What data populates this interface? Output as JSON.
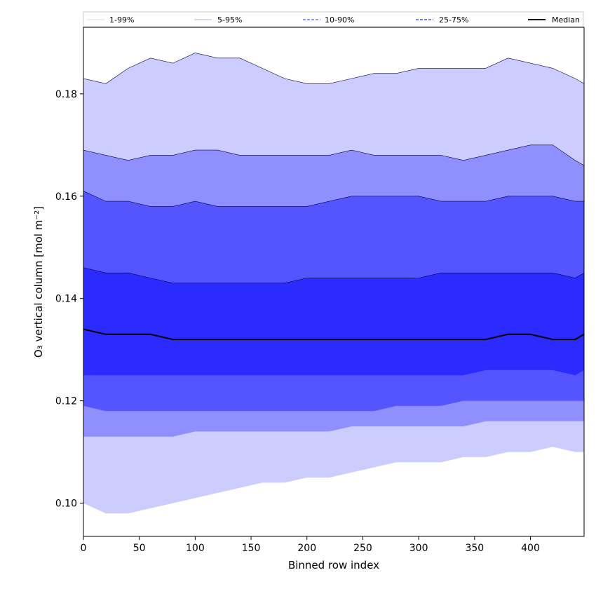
{
  "chart_data": {
    "type": "area",
    "xlabel": "Binned row index",
    "ylabel": "O₃ vertical column [mol m⁻²]",
    "xlim": [
      0,
      448
    ],
    "ylim": [
      0.0935,
      0.193
    ],
    "x_ticks": [
      0,
      50,
      100,
      150,
      200,
      250,
      300,
      350,
      400
    ],
    "y_ticks": [
      0.1,
      0.12,
      0.14,
      0.16,
      0.18
    ],
    "y_tick_labels": [
      "0.10",
      "0.12",
      "0.14",
      "0.16",
      "0.18"
    ],
    "grid": false,
    "legend_placement": "top, spanning full width",
    "legend": [
      {
        "label": "1-99%",
        "color": "#ccccff",
        "style": "solid-thin"
      },
      {
        "label": "5-95%",
        "color": "#8f8fff",
        "style": "solid-thin"
      },
      {
        "label": "10-90%",
        "color": "#5555ff",
        "style": "dashed"
      },
      {
        "label": "25-75%",
        "color": "#2b2bff",
        "style": "dashed"
      },
      {
        "label": "Median",
        "color": "#000000",
        "style": "solid-thick"
      }
    ],
    "x": [
      0,
      20,
      40,
      60,
      80,
      100,
      120,
      140,
      160,
      180,
      200,
      220,
      240,
      260,
      280,
      300,
      320,
      340,
      360,
      380,
      400,
      420,
      440,
      448
    ],
    "bands": [
      {
        "name": "1-99%",
        "color": "#ccccff",
        "upper": [
          0.183,
          0.182,
          0.185,
          0.187,
          0.186,
          0.188,
          0.187,
          0.187,
          0.185,
          0.183,
          0.182,
          0.182,
          0.183,
          0.184,
          0.184,
          0.185,
          0.185,
          0.185,
          0.185,
          0.187,
          0.186,
          0.185,
          0.183,
          0.182
        ],
        "lower": [
          0.1,
          0.098,
          0.098,
          0.099,
          0.1,
          0.101,
          0.102,
          0.103,
          0.104,
          0.104,
          0.105,
          0.105,
          0.106,
          0.107,
          0.108,
          0.108,
          0.108,
          0.109,
          0.109,
          0.11,
          0.11,
          0.111,
          0.11,
          0.11
        ]
      },
      {
        "name": "5-95%",
        "color": "#8f8fff",
        "upper": [
          0.169,
          0.168,
          0.167,
          0.168,
          0.168,
          0.169,
          0.169,
          0.168,
          0.168,
          0.168,
          0.168,
          0.168,
          0.169,
          0.168,
          0.168,
          0.168,
          0.168,
          0.167,
          0.168,
          0.169,
          0.17,
          0.17,
          0.167,
          0.166
        ]
      },
      {
        "name": "10-90%",
        "color": "#5555ff",
        "upper": [
          0.161,
          0.159,
          0.159,
          0.158,
          0.158,
          0.159,
          0.158,
          0.158,
          0.158,
          0.158,
          0.158,
          0.159,
          0.16,
          0.16,
          0.16,
          0.16,
          0.159,
          0.159,
          0.159,
          0.16,
          0.16,
          0.16,
          0.159,
          0.159
        ],
        "lower": [
          0.119,
          0.118,
          0.118,
          0.118,
          0.118,
          0.118,
          0.118,
          0.118,
          0.118,
          0.118,
          0.118,
          0.118,
          0.118,
          0.118,
          0.119,
          0.119,
          0.119,
          0.12,
          0.12,
          0.12,
          0.12,
          0.12,
          0.12,
          0.12
        ]
      },
      {
        "name": "25-75%",
        "color": "#2b2bff",
        "upper": [
          0.146,
          0.145,
          0.145,
          0.144,
          0.143,
          0.143,
          0.143,
          0.143,
          0.143,
          0.143,
          0.144,
          0.144,
          0.144,
          0.144,
          0.144,
          0.144,
          0.145,
          0.145,
          0.145,
          0.145,
          0.145,
          0.145,
          0.144,
          0.145
        ],
        "lower": [
          0.125,
          0.125,
          0.125,
          0.125,
          0.125,
          0.125,
          0.125,
          0.125,
          0.125,
          0.125,
          0.125,
          0.125,
          0.125,
          0.125,
          0.125,
          0.125,
          0.125,
          0.125,
          0.126,
          0.126,
          0.126,
          0.126,
          0.125,
          0.126
        ]
      }
    ],
    "band_5_95_lower": [
      0.113,
      0.113,
      0.113,
      0.113,
      0.113,
      0.114,
      0.114,
      0.114,
      0.114,
      0.114,
      0.114,
      0.114,
      0.115,
      0.115,
      0.115,
      0.115,
      0.115,
      0.115,
      0.116,
      0.116,
      0.116,
      0.116,
      0.116,
      0.116
    ],
    "median": [
      0.134,
      0.133,
      0.133,
      0.133,
      0.132,
      0.132,
      0.132,
      0.132,
      0.132,
      0.132,
      0.132,
      0.132,
      0.132,
      0.132,
      0.132,
      0.132,
      0.132,
      0.132,
      0.132,
      0.133,
      0.133,
      0.132,
      0.132,
      0.133
    ]
  }
}
